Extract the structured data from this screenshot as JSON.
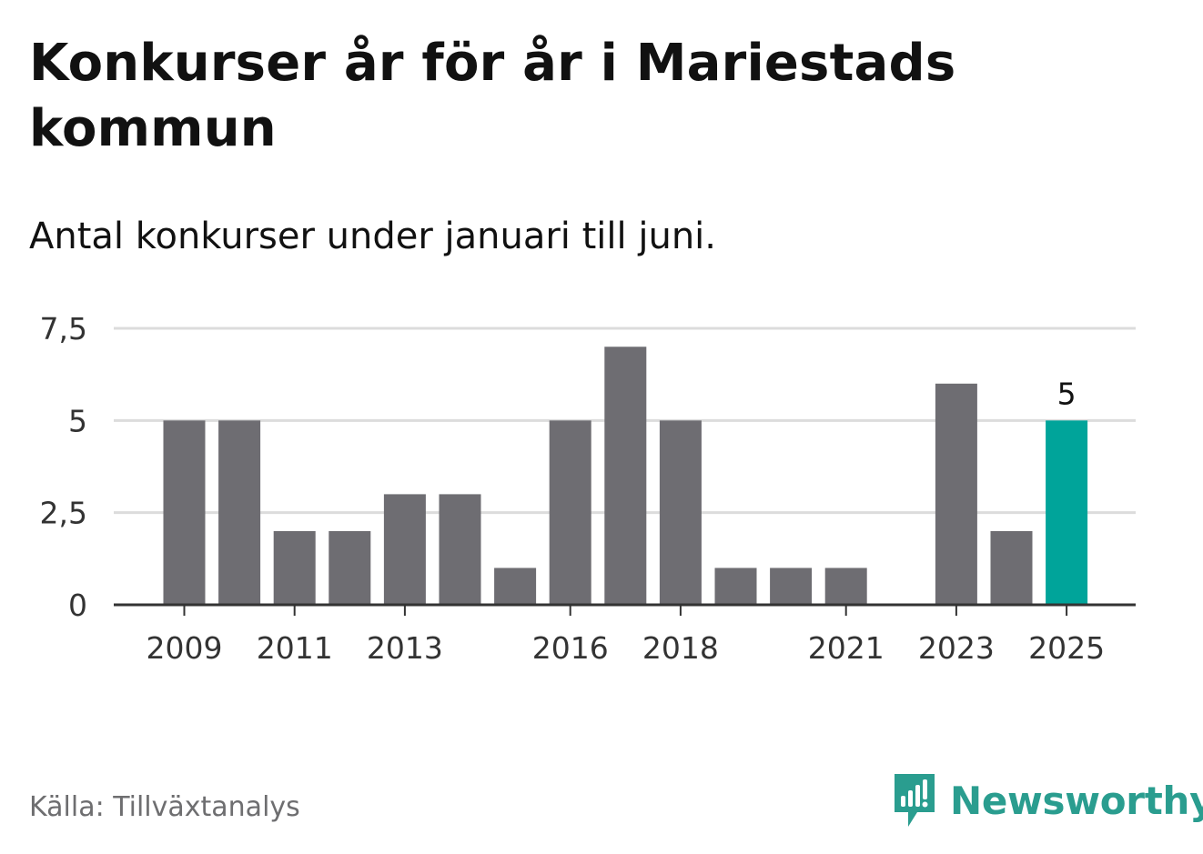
{
  "title": "Konkurser år för år i Mariestads kommun",
  "subtitle": "Antal konkurser under januari till juni.",
  "source": "Källa: Tillväxtanalys",
  "brand": {
    "name": "Newsworthy",
    "logo_icon": "newsworthy-logo-icon",
    "color": "#2a9d8f"
  },
  "colors": {
    "bar": "#6e6d72",
    "highlight": "#00a49a",
    "grid": "#dcdcdc",
    "axis": "#333333",
    "text": "#333333"
  },
  "chart_data": {
    "type": "bar",
    "title": "Konkurser år för år i Mariestads kommun",
    "subtitle": "Antal konkurser under januari till juni.",
    "xlabel": "",
    "ylabel": "",
    "categories": [
      "2009",
      "2010",
      "2011",
      "2012",
      "2013",
      "2014",
      "2015",
      "2016",
      "2017",
      "2018",
      "2019",
      "2020",
      "2021",
      "2022",
      "2023",
      "2024",
      "2025"
    ],
    "values": [
      5,
      5,
      2,
      2,
      3,
      3,
      1,
      5,
      7,
      5,
      1,
      1,
      1,
      0,
      6,
      2,
      5
    ],
    "x_tick_labels": [
      "2009",
      "2011",
      "2013",
      "2016",
      "2018",
      "2021",
      "2023",
      "2025"
    ],
    "y_ticks": [
      0,
      2.5,
      5,
      7.5
    ],
    "y_tick_labels": [
      "0",
      "2,5",
      "5",
      "7,5"
    ],
    "ylim": [
      0,
      7.5
    ],
    "grid": true,
    "highlight_category": "2025",
    "data_labels": [
      {
        "category": "2025",
        "text": "5"
      }
    ]
  }
}
